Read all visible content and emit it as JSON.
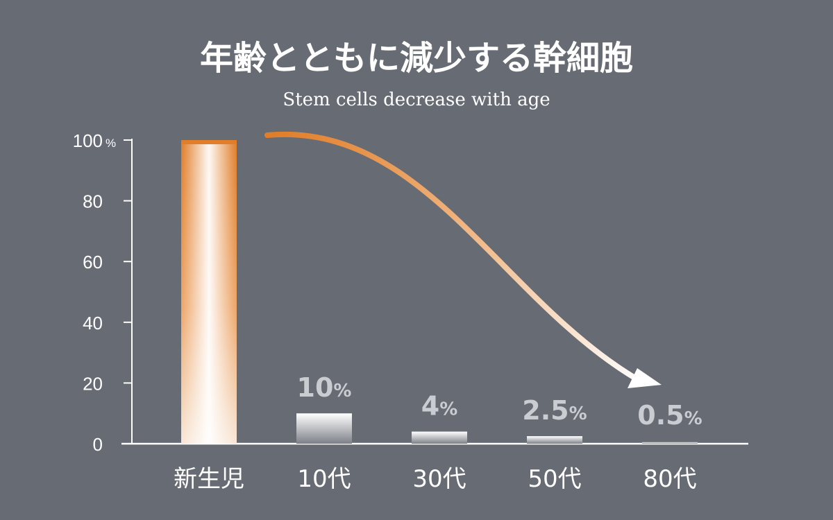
{
  "chart_data": {
    "type": "bar",
    "title": "年齢とともに減少する幹細胞",
    "subtitle": "Stem cells decrease with age",
    "categories": [
      "新生児",
      "10代",
      "30代",
      "50代",
      "80代"
    ],
    "values": [
      100,
      10,
      4,
      2.5,
      0.5
    ],
    "data_labels": [
      "",
      "10",
      "4",
      "2.5",
      "0.5"
    ],
    "data_label_unit": "%",
    "ylim": [
      0,
      100
    ],
    "yticks": [
      "0",
      "20",
      "40",
      "60",
      "80",
      "100"
    ],
    "ytick_unit": "%",
    "grid": false,
    "legend": "none",
    "trend_arrow": "decreasing",
    "colors": {
      "background": "#676b73",
      "accent": "#e07d28",
      "axis": "#ffffff",
      "label": "#c9ccd0"
    }
  }
}
